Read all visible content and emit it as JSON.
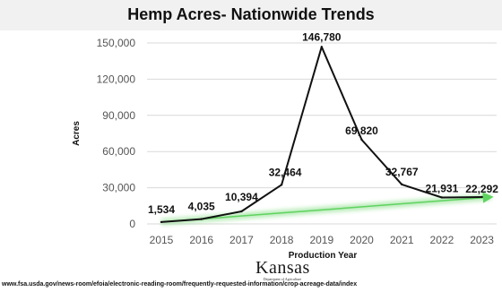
{
  "chart_data": {
    "type": "line",
    "title": "Hemp Acres- Nationwide Trends",
    "xlabel": "Production Year",
    "ylabel": "Acres",
    "x": [
      "2015",
      "2016",
      "2017",
      "2018",
      "2019",
      "2020",
      "2021",
      "2022",
      "2023"
    ],
    "series": [
      {
        "values": [
          1534,
          4035,
          10394,
          32464,
          146780,
          69820,
          32767,
          21931,
          22292
        ]
      }
    ],
    "data_labels": [
      "1,534",
      "4,035",
      "10,394",
      "32,464",
      "146,780",
      "69,820",
      "32,767",
      "21,931",
      "22,292"
    ],
    "ylim": [
      0,
      150000
    ],
    "yticks": [
      0,
      30000,
      60000,
      90000,
      120000,
      150000
    ],
    "ytick_labels": [
      "0",
      "30,000",
      "60,000",
      "90,000",
      "120,000",
      "150,000"
    ],
    "grid": true,
    "trend_arrow": {
      "from": {
        "x": "2015",
        "y": 1534
      },
      "to": {
        "x": "2023",
        "y": 22292
      },
      "color": "#5fd35f"
    },
    "colors": {
      "line": "#111111",
      "grid": "#d9d9d9",
      "trend": "#5fd35f"
    }
  },
  "footer": {
    "source": "www.fsa.usda.gov/news-room/efoia/electronic-reading-room/frequently-requested-information/crop-acreage-data/index",
    "logo_text": "Kansas",
    "logo_subtext": "Department of Agriculture"
  }
}
